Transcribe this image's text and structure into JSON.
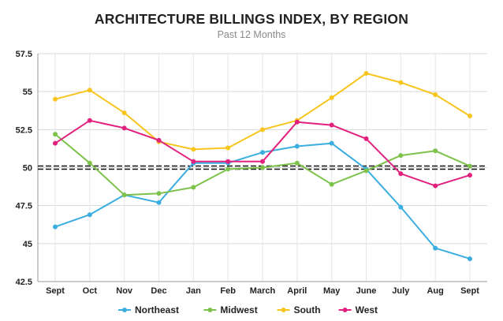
{
  "chart_data": {
    "type": "line",
    "title": "ARCHITECTURE BILLINGS INDEX, BY REGION",
    "subtitle": "Past 12 Months",
    "xlabel": "",
    "ylabel": "",
    "categories": [
      "Sept",
      "Oct",
      "Nov",
      "Dec",
      "Jan",
      "Feb",
      "March",
      "April",
      "May",
      "June",
      "July",
      "Aug",
      "Sept"
    ],
    "ylim": [
      42.5,
      57.5
    ],
    "yticks": [
      42.5,
      45,
      47.5,
      50,
      52.5,
      55,
      57.5
    ],
    "ytick_labels": [
      "42.5",
      "45",
      "47.5",
      "50",
      "52.5",
      "55",
      "57.5"
    ],
    "reference_line": 50,
    "grid": "horizontal",
    "legend_position": "bottom",
    "series": [
      {
        "name": "Northeast",
        "color": "#3aaee0",
        "values": [
          46.1,
          46.9,
          48.2,
          47.7,
          50.3,
          50.3,
          51.0,
          51.4,
          51.6,
          49.9,
          47.4,
          44.7,
          44.0
        ]
      },
      {
        "name": "Midwest",
        "color": "#7dc24b",
        "values": [
          52.2,
          50.3,
          48.2,
          48.3,
          48.7,
          49.9,
          50.0,
          50.3,
          48.9,
          49.8,
          50.8,
          51.1,
          50.1
        ]
      },
      {
        "name": "South",
        "color": "#f7c51e",
        "values": [
          54.5,
          55.1,
          53.6,
          51.7,
          51.2,
          51.3,
          52.5,
          53.1,
          54.6,
          56.2,
          55.6,
          54.8,
          53.4
        ]
      },
      {
        "name": "West",
        "color": "#e2207e",
        "values": [
          51.6,
          53.1,
          52.6,
          51.8,
          50.4,
          50.4,
          50.4,
          53.0,
          52.8,
          51.9,
          49.6,
          48.8,
          49.5
        ]
      }
    ]
  }
}
